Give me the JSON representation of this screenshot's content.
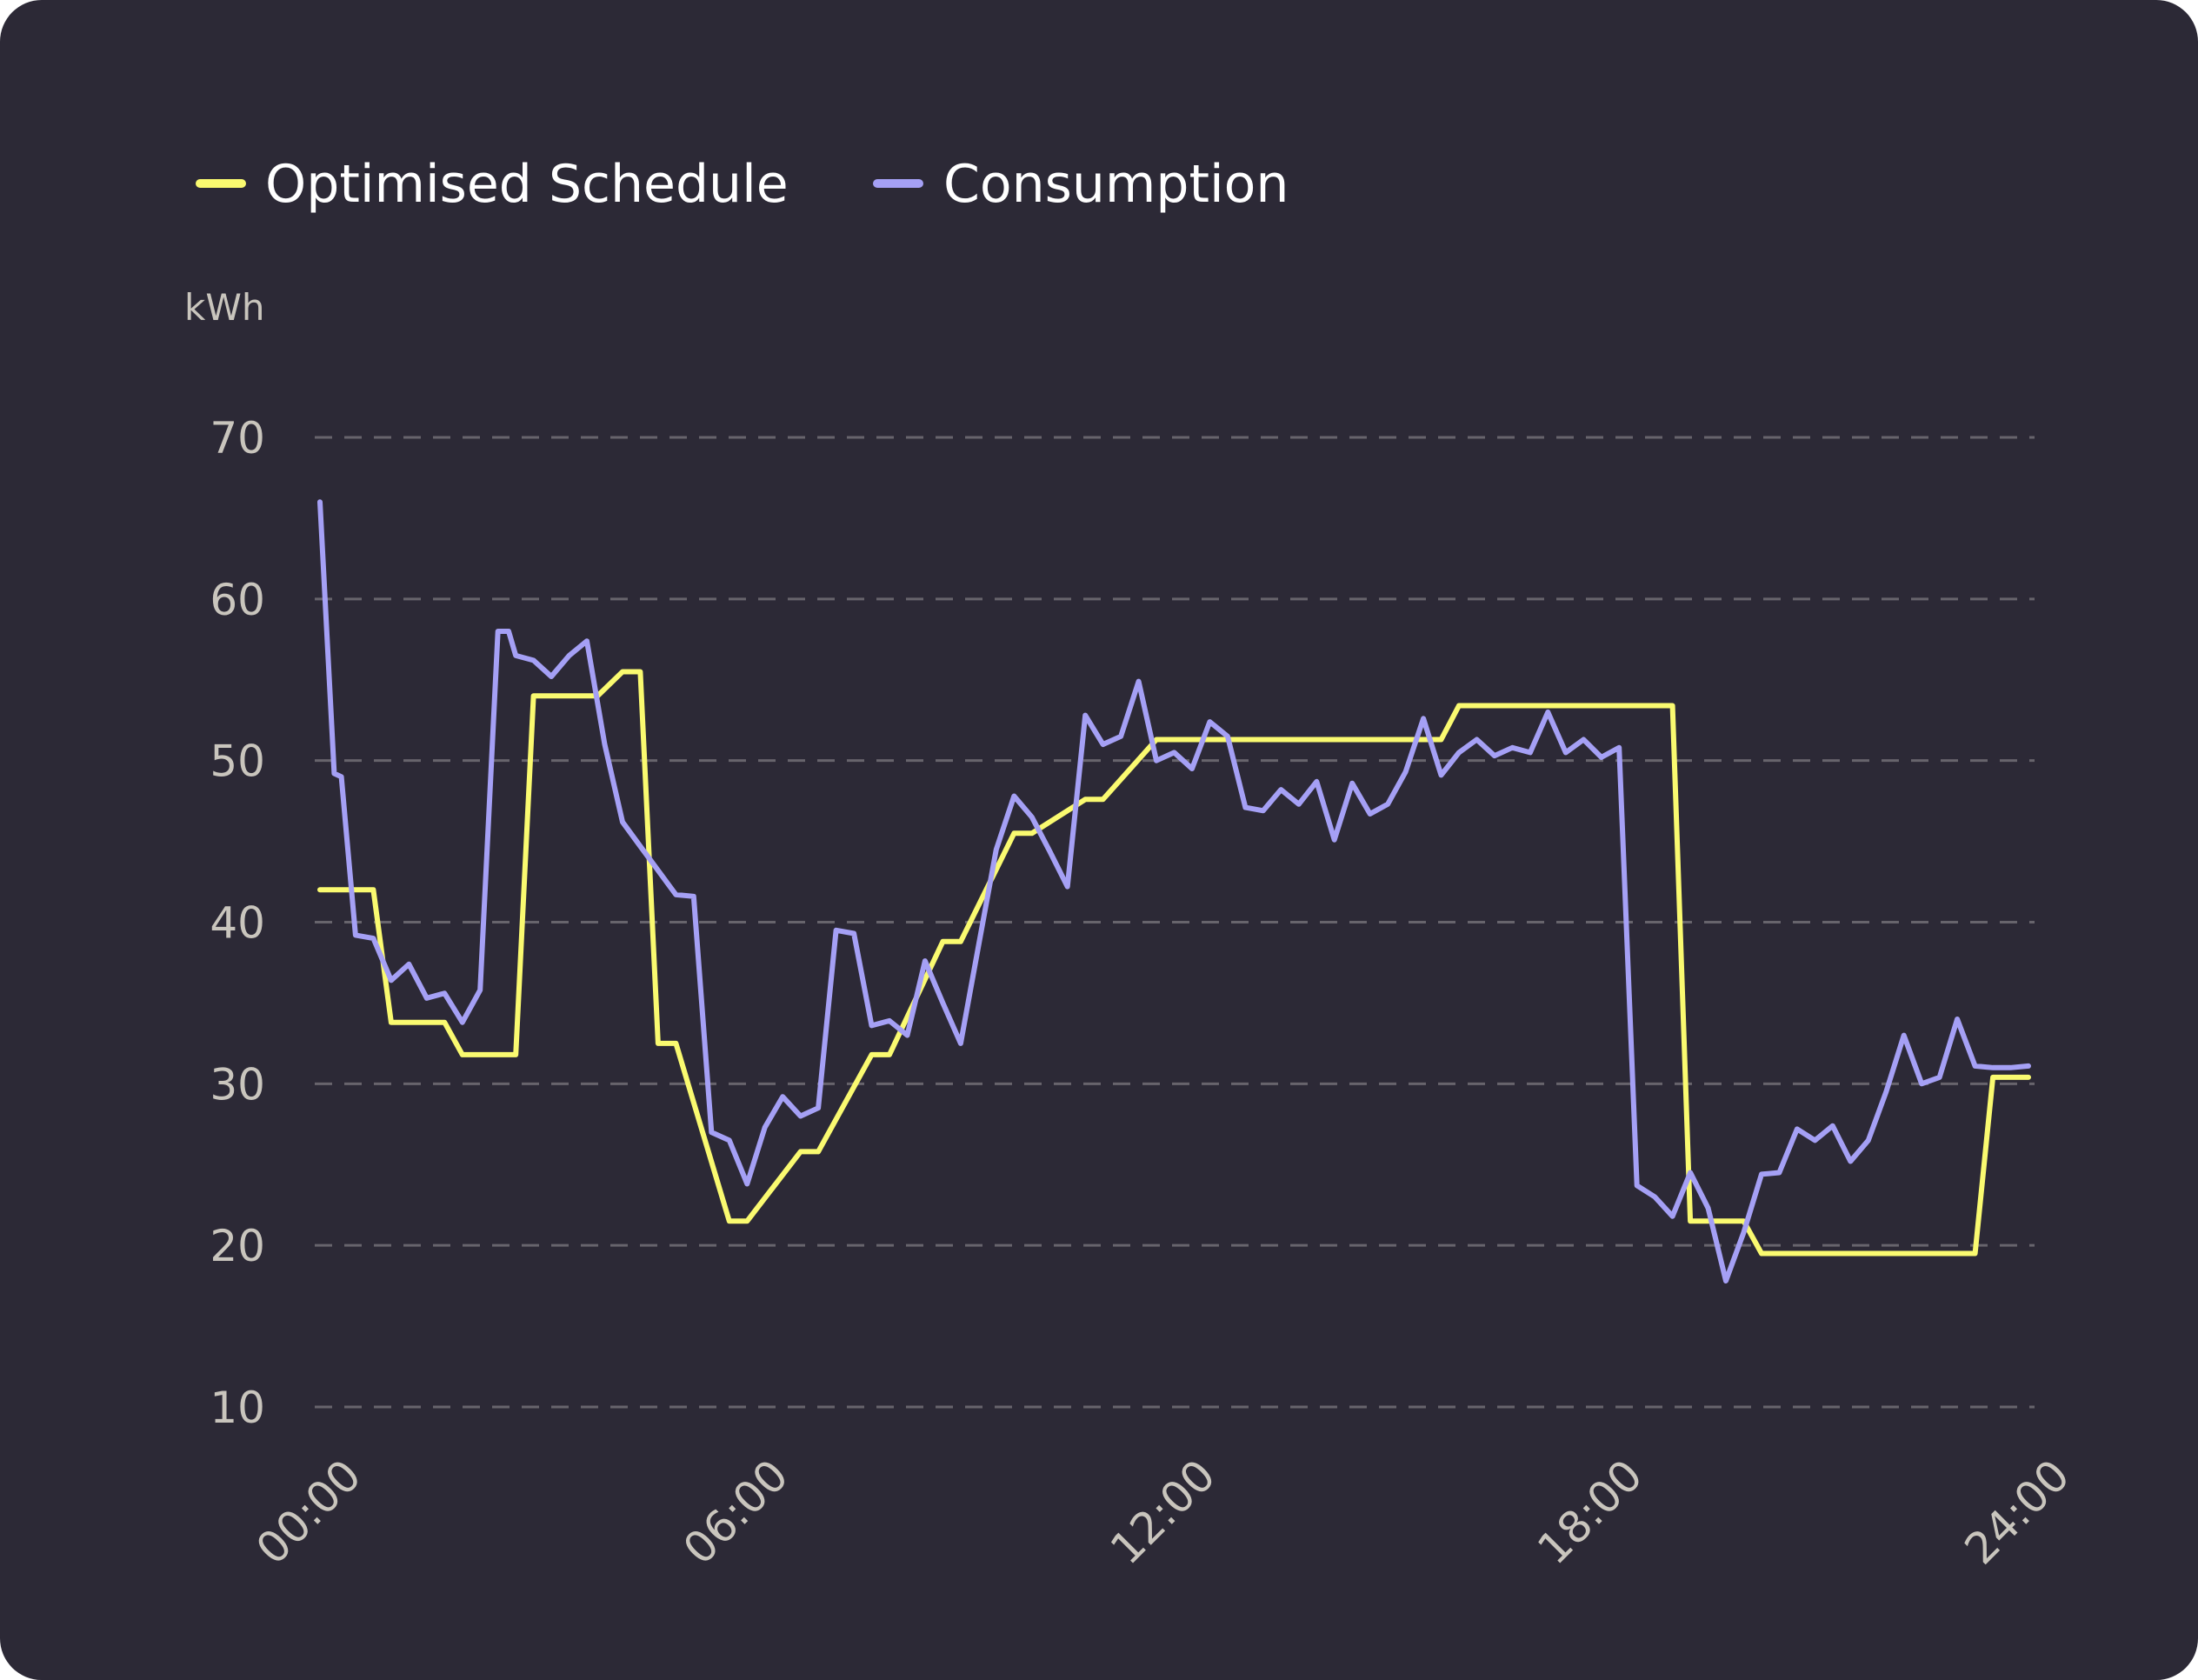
{
  "chart_data": {
    "type": "line",
    "title": "",
    "xlabel": "",
    "ylabel": "kWh",
    "xlim": [
      0,
      24
    ],
    "ylim": [
      10,
      70
    ],
    "grid": true,
    "legend": "top-left",
    "y_ticks": [
      "70",
      "60",
      "50",
      "40",
      "30",
      "20",
      "10"
    ],
    "x_ticks": [
      "00:00",
      "06:00",
      "12:00",
      "18:00",
      "24:00"
    ],
    "x_tick_values": [
      0,
      6,
      12,
      18,
      24
    ],
    "y_tick_values": [
      70,
      60,
      50,
      40,
      30,
      20,
      10
    ],
    "series": [
      {
        "name": "Optimised Schedule",
        "color": "#fafa70",
        "shape": "step",
        "x": [
          0,
          0.75,
          1.0,
          1.75,
          2.0,
          2.75,
          3.0,
          3.75,
          3.9,
          4.25,
          4.5,
          4.75,
          5.0,
          5.75,
          6.0,
          6.75,
          7.0,
          7.75,
          8.0,
          8.75,
          9.0,
          9.75,
          10.0,
          10.75,
          11.0,
          11.75,
          12.0,
          15.75,
          16.0,
          19.0,
          19.25,
          20.0,
          20.25,
          23.25,
          23.5,
          24.0
        ],
        "y": [
          42,
          42,
          33.8,
          33.8,
          31.8,
          31.8,
          54,
          54,
          54,
          55.5,
          55.5,
          32.5,
          32.5,
          21.5,
          21.5,
          25.8,
          25.8,
          31.8,
          31.8,
          38.8,
          38.8,
          45.5,
          45.5,
          47.6,
          47.6,
          51.3,
          51.3,
          51.3,
          53.4,
          53.4,
          21.5,
          21.5,
          19.5,
          19.5,
          30.4,
          30.4
        ]
      },
      {
        "name": "Consumption",
        "color": "#a5a0f5",
        "shape": "line",
        "x": [
          0,
          0.2,
          0.3,
          0.5,
          0.75,
          1.0,
          1.25,
          1.5,
          1.75,
          2.0,
          2.25,
          2.5,
          2.65,
          2.75,
          3.0,
          3.25,
          3.5,
          3.75,
          4.0,
          4.25,
          4.5,
          5.0,
          5.25,
          5.5,
          5.75,
          6.0,
          6.25,
          6.5,
          6.75,
          7.0,
          7.25,
          7.5,
          7.75,
          8.0,
          8.25,
          8.5,
          8.75,
          9.0,
          9.25,
          9.5,
          9.75,
          10.0,
          10.25,
          10.5,
          10.75,
          11.0,
          11.25,
          11.5,
          11.75,
          12.0,
          12.25,
          12.5,
          12.75,
          13.0,
          13.25,
          13.5,
          13.75,
          14.0,
          14.25,
          14.5,
          14.75,
          15.0,
          15.25,
          15.5,
          15.75,
          16.0,
          16.25,
          16.5,
          16.75,
          17.0,
          17.25,
          17.5,
          17.75,
          18.0,
          18.25,
          18.5,
          18.75,
          19.0,
          19.25,
          19.5,
          19.75,
          20.0,
          20.25,
          20.5,
          20.75,
          21.0,
          21.25,
          21.5,
          21.75,
          22.0,
          22.25,
          22.5,
          22.75,
          23.0,
          23.25,
          23.5,
          23.75,
          24.0
        ],
        "y": [
          66,
          49.2,
          49,
          39.2,
          39,
          36.4,
          37.4,
          35.3,
          35.6,
          33.8,
          35.8,
          58,
          58,
          56.5,
          56.2,
          55.2,
          56.5,
          57.4,
          51,
          46.2,
          44.7,
          41.7,
          41.6,
          27,
          26.5,
          23.8,
          27.3,
          29.2,
          28.0,
          28.5,
          39.5,
          39.3,
          33.6,
          33.9,
          33.0,
          37.6,
          35,
          32.5,
          38.5,
          44.5,
          47.8,
          46.5,
          44.4,
          42.2,
          52.8,
          51.0,
          51.5,
          54.9,
          50.0,
          50.5,
          49.5,
          52.4,
          51.5,
          47.1,
          46.9,
          48.2,
          47.3,
          48.7,
          45.1,
          48.6,
          46.7,
          47.3,
          49.3,
          52.6,
          49.1,
          50.5,
          51.3,
          50.3,
          50.8,
          50.5,
          53.0,
          50.5,
          51.3,
          50.2,
          50.8,
          23.7,
          23.0,
          21.8,
          24.5,
          22.3,
          17.8,
          20.8,
          24.4,
          24.5,
          27.2,
          26.5,
          27.4,
          25.2,
          26.5,
          29.5,
          33.0,
          30.0,
          30.4,
          34.0,
          31.1,
          31.0,
          31.0,
          31.1
        ]
      }
    ]
  },
  "legend": {
    "items": [
      {
        "label": "Optimised Schedule",
        "color": "#fafa70"
      },
      {
        "label": "Consumption",
        "color": "#a5a0f5"
      }
    ]
  },
  "axis": {
    "unit_label": "kWh"
  },
  "colors": {
    "background": "#2c2936",
    "grid": "#67646c",
    "tick_text": "#c9c5bd"
  }
}
